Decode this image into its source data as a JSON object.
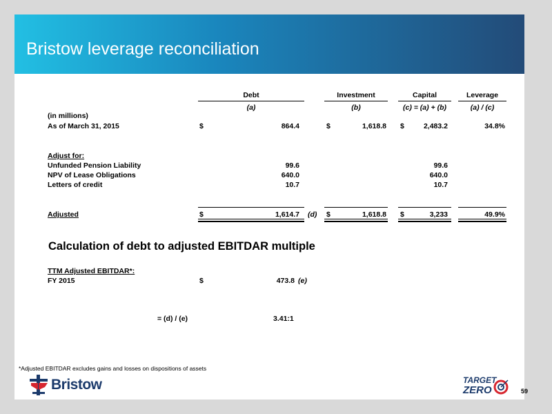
{
  "title": "Bristow leverage reconciliation",
  "columns": {
    "debt": "Debt",
    "investment": "Investment",
    "capital": "Capital",
    "leverage": "Leverage",
    "debt_sub": "(a)",
    "investment_sub": "(b)",
    "capital_sub": "(c)  = (a) + (b)",
    "leverage_sub": "(a) / (c)"
  },
  "units": "(in millions)",
  "as_of": {
    "label": "As of March 31, 2015",
    "debt_cur": "$",
    "debt": "864.4",
    "inv_cur": "$",
    "investment": "1,618.8",
    "cap_cur": "$",
    "capital": "2,483.2",
    "leverage": "34.8%"
  },
  "adjust_header": "Adjust for:",
  "adjustments": [
    {
      "label": "Unfunded Pension Liability",
      "debt": "99.6",
      "capital": "99.6"
    },
    {
      "label": "NPV of Lease Obligations",
      "debt": "640.0",
      "capital": "640.0"
    },
    {
      "label": "Letters of credit",
      "debt": "10.7",
      "capital": "10.7"
    }
  ],
  "adjusted": {
    "label": "Adjusted",
    "debt_cur": "$",
    "debt": "1,614.7",
    "debt_ref": "(d)",
    "inv_cur": "$",
    "investment": "1,618.8",
    "cap_cur": "$",
    "capital": "3,233",
    "leverage": "49.9%"
  },
  "ebitdar_section": {
    "title": "Calculation of debt to adjusted EBITDAR multiple",
    "header": "TTM Adjusted EBITDAR*:",
    "row_label": "FY 2015",
    "cur": "$",
    "value": "473.8",
    "ref": "(e)",
    "formula_label": "= (d) / (e)",
    "formula_value": "3.41:1"
  },
  "footnote": "*Adjusted EBITDAR excludes gains and losses on dispositions of assets",
  "brand": {
    "name": "Bristow",
    "target_top": "TARGET",
    "target_bottom": "ZERO",
    "accent": "#1a86bd",
    "navy": "#1b3a6b",
    "red": "#d7262f"
  },
  "page_number": "59"
}
